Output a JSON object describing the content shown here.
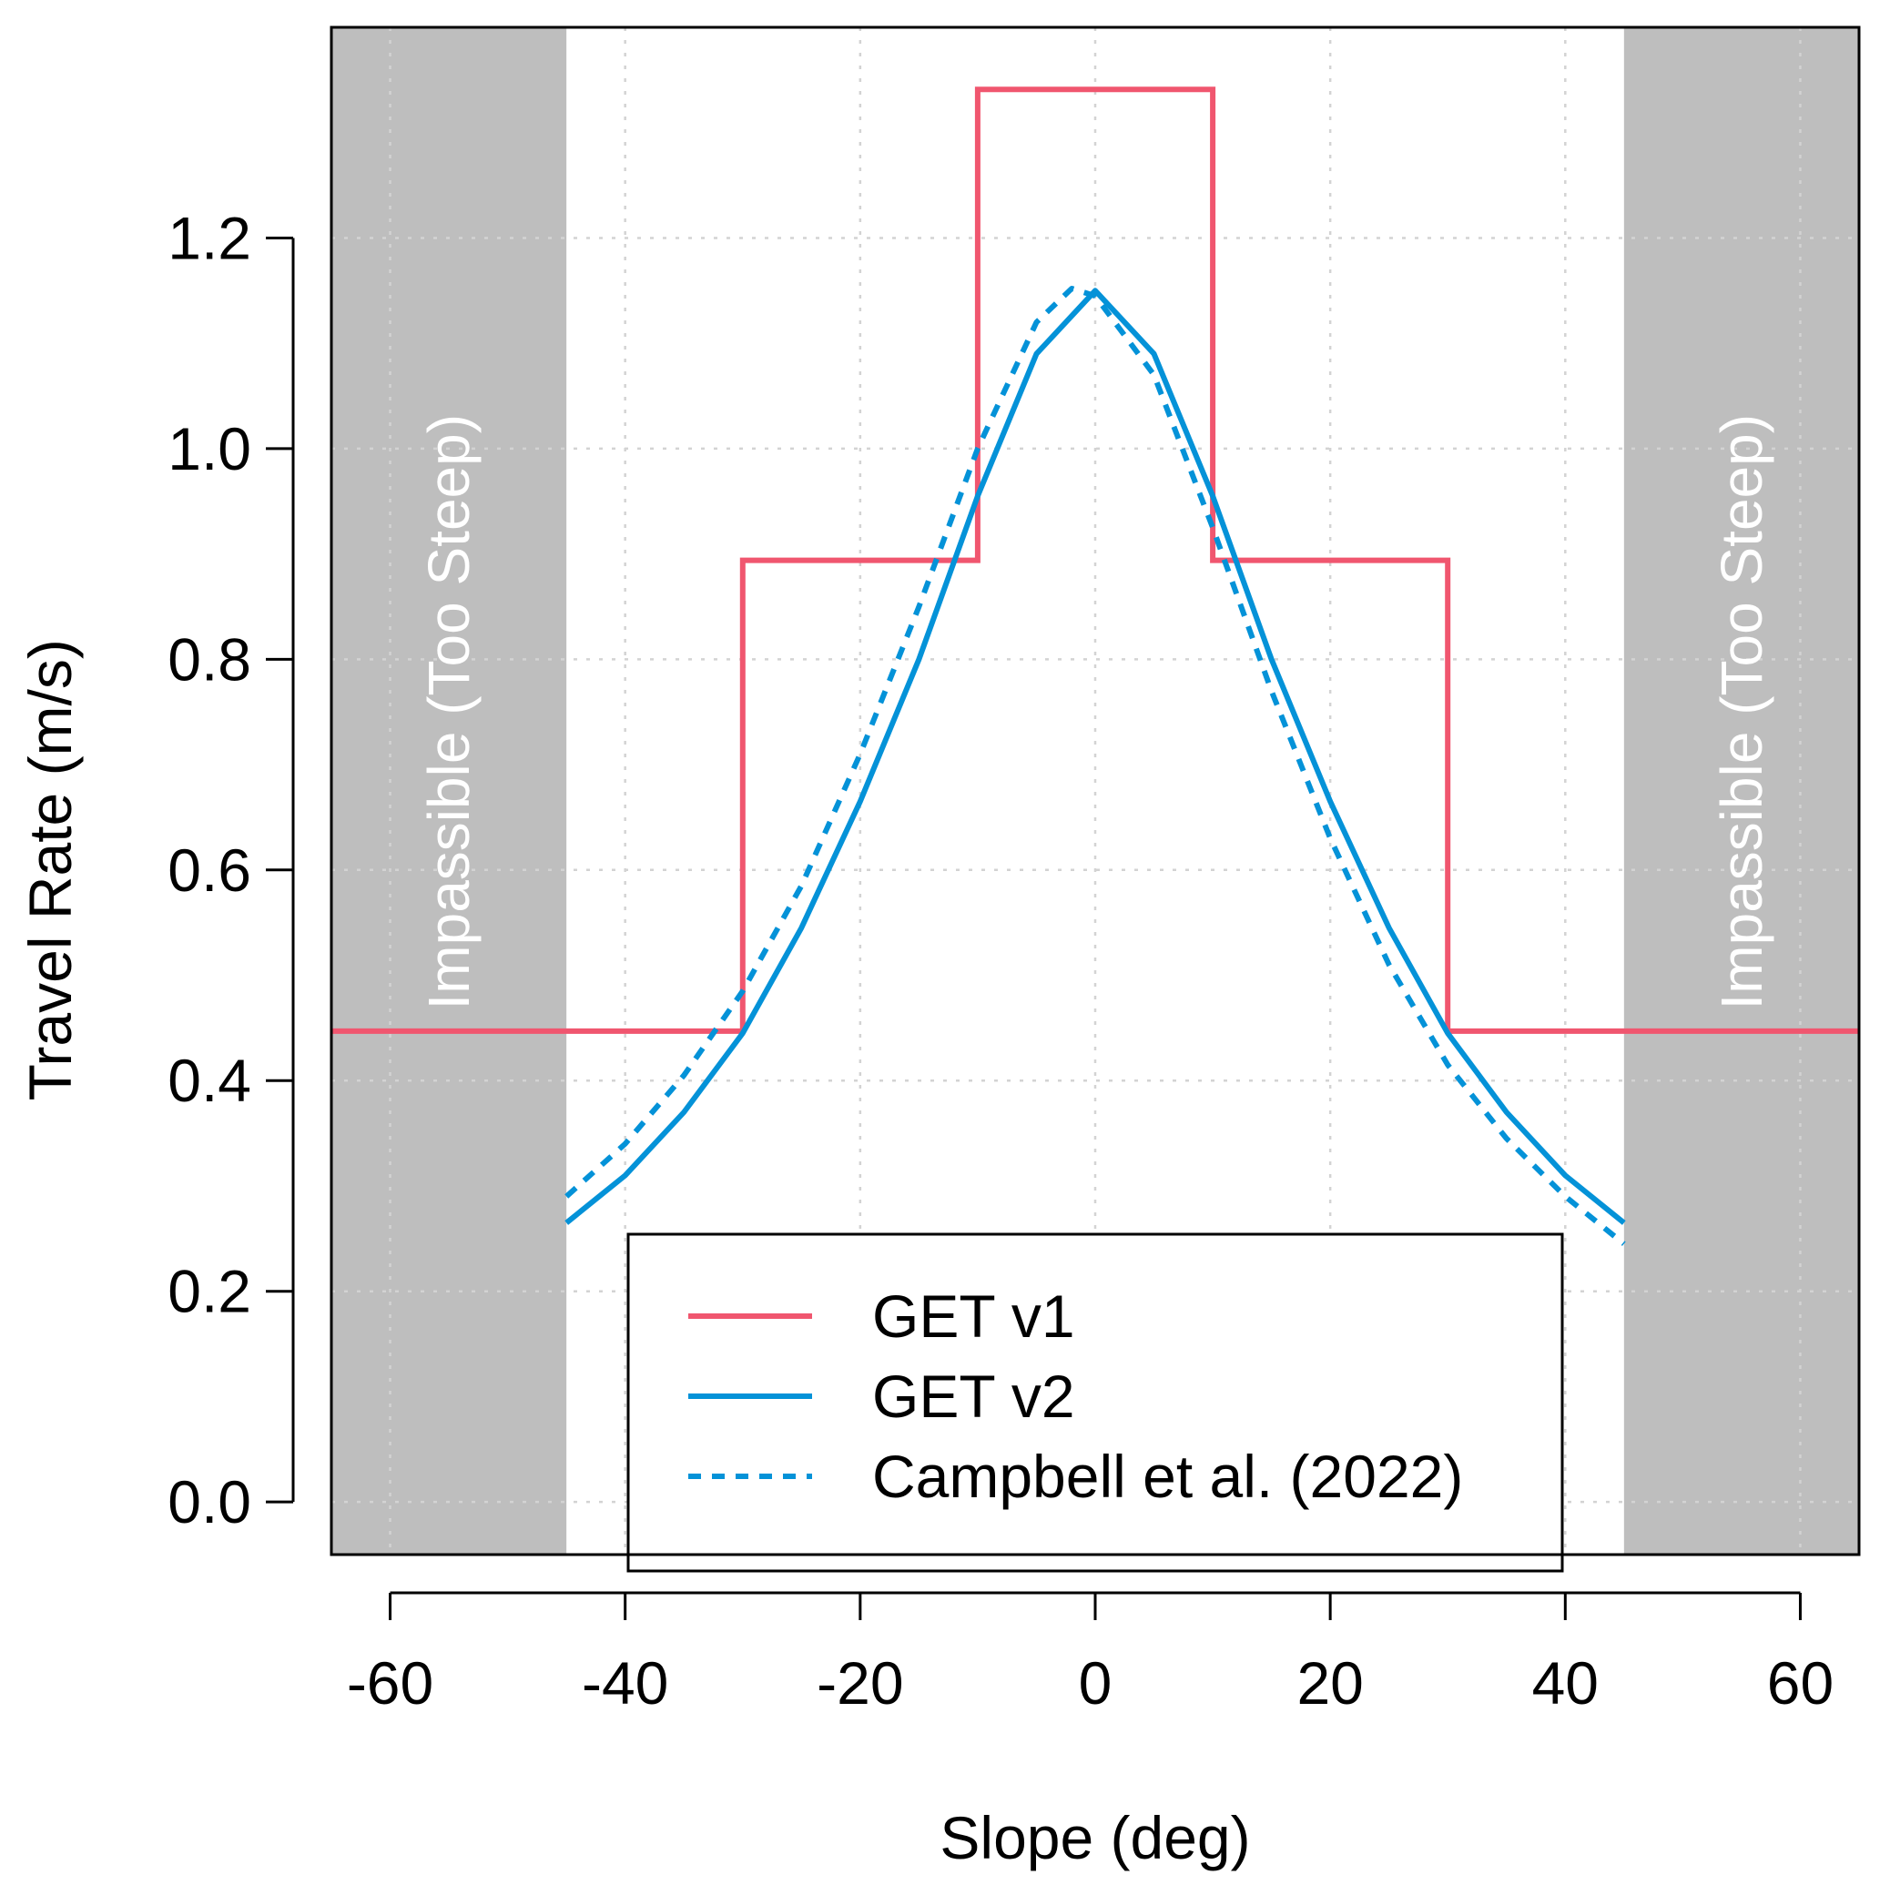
{
  "chart_data": {
    "type": "line",
    "title": "",
    "xlabel": "Slope (deg)",
    "ylabel": "Travel Rate (m/s)",
    "xlim": [
      -65,
      65
    ],
    "ylim": [
      -0.05,
      1.4
    ],
    "xticks": [
      -60,
      -40,
      -20,
      0,
      20,
      40,
      60
    ],
    "xtick_labels": [
      "-60",
      "-40",
      "-20",
      "0",
      "20",
      "40",
      "60"
    ],
    "yticks": [
      0.0,
      0.2,
      0.4,
      0.6,
      0.8,
      1.0,
      1.2
    ],
    "ytick_labels": [
      "0.0",
      "0.2",
      "0.4",
      "0.6",
      "0.8",
      "1.0",
      "1.2"
    ],
    "grid": true,
    "legend_position": "bottom-center",
    "shaded_regions": [
      {
        "x": [
          -65,
          -45
        ],
        "label": "Impassible (Too Steep)",
        "color": "#bebebe"
      },
      {
        "x": [
          45,
          65
        ],
        "label": "Impassible (Too Steep)",
        "color": "#bebebe"
      }
    ],
    "series": [
      {
        "name": "GET v1",
        "style": "step",
        "color": "#f0566f",
        "x": [
          -65,
          -30,
          -30,
          -10,
          -10,
          10,
          10,
          30,
          30,
          65
        ],
        "y": [
          0.447,
          0.447,
          0.894,
          0.894,
          1.341,
          1.341,
          0.894,
          0.894,
          0.447,
          0.447
        ]
      },
      {
        "name": "GET v2",
        "style": "solid",
        "color": "#0492d8",
        "x": [
          -45,
          -40,
          -35,
          -30,
          -25,
          -20,
          -15,
          -10,
          -5,
          0,
          5,
          10,
          15,
          20,
          25,
          30,
          35,
          40,
          45
        ],
        "y": [
          0.265,
          0.31,
          0.37,
          0.445,
          0.545,
          0.665,
          0.8,
          0.955,
          1.09,
          1.15,
          1.09,
          0.955,
          0.8,
          0.665,
          0.545,
          0.445,
          0.37,
          0.31,
          0.265
        ]
      },
      {
        "name": "Campbell et al. (2022)",
        "style": "dotted",
        "color": "#0492d8",
        "x": [
          -45,
          -40,
          -35,
          -30,
          -25,
          -20,
          -15,
          -10,
          -5,
          -2,
          0,
          5,
          10,
          15,
          20,
          25,
          30,
          35,
          40,
          45
        ],
        "y": [
          0.29,
          0.34,
          0.405,
          0.485,
          0.585,
          0.71,
          0.85,
          1.0,
          1.12,
          1.152,
          1.145,
          1.07,
          0.925,
          0.77,
          0.63,
          0.51,
          0.415,
          0.345,
          0.29,
          0.245
        ]
      }
    ]
  }
}
